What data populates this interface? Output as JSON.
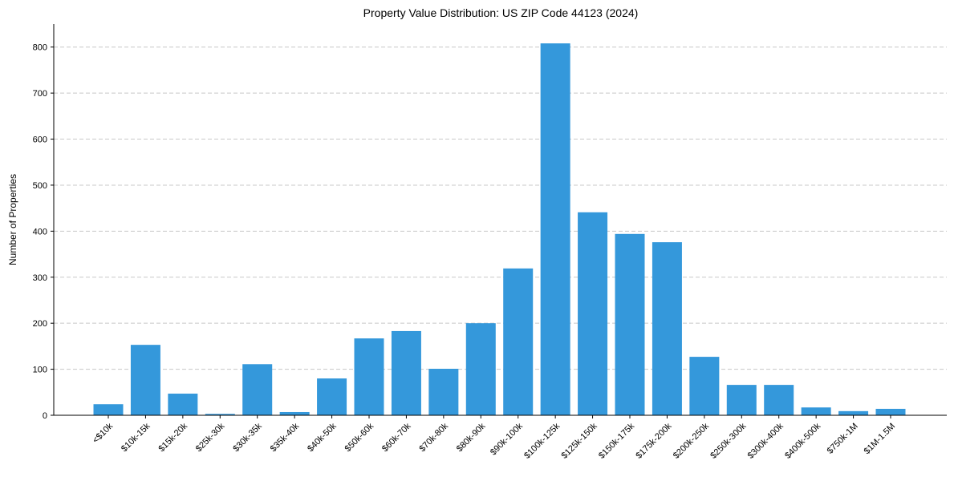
{
  "chart_data": {
    "type": "bar",
    "title": "Property Value Distribution: US ZIP Code 44123 (2024)",
    "xlabel": "",
    "ylabel": "Number of Properties",
    "ylim": [
      0,
      850
    ],
    "yticks": [
      0,
      100,
      200,
      300,
      400,
      500,
      600,
      700,
      800
    ],
    "grid": "y-dashed",
    "bar_color": "#3498db",
    "categories": [
      "<$10k",
      "$10k-15k",
      "$15k-20k",
      "$25k-30k",
      "$30k-35k",
      "$35k-40k",
      "$40k-50k",
      "$50k-60k",
      "$60k-70k",
      "$70k-80k",
      "$80k-90k",
      "$90k-100k",
      "$100k-125k",
      "$125k-150k",
      "$150k-175k",
      "$175k-200k",
      "$200k-250k",
      "$250k-300k",
      "$300k-400k",
      "$400k-500k",
      "$750k-1M",
      "$1M-1.5M"
    ],
    "values": [
      24,
      153,
      47,
      3,
      111,
      7,
      80,
      167,
      183,
      101,
      200,
      319,
      808,
      441,
      394,
      376,
      127,
      66,
      66,
      17,
      9,
      14
    ]
  }
}
